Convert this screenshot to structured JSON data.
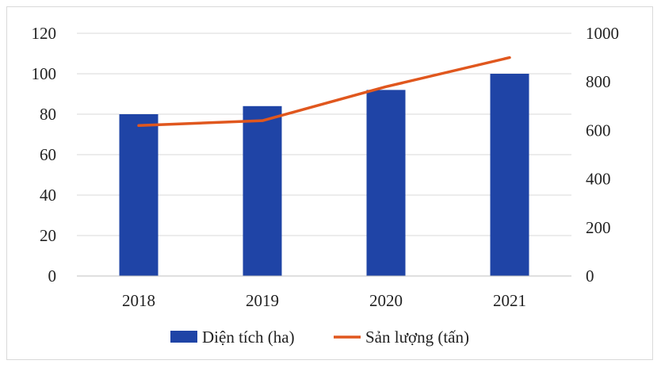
{
  "chart_data": {
    "type": "bar",
    "categories": [
      "2018",
      "2019",
      "2020",
      "2021"
    ],
    "series": [
      {
        "name": "Diện tích (ha)",
        "type": "bar",
        "axis": "left",
        "values": [
          80,
          84,
          92,
          100
        ],
        "color": "#1f44a6"
      },
      {
        "name": "Sản lượng (tấn)",
        "type": "line",
        "axis": "right",
        "values": [
          620,
          640,
          780,
          900
        ],
        "color": "#e0571e"
      }
    ],
    "y_left": {
      "range": [
        0,
        120
      ],
      "ticks": [
        "0",
        "20",
        "40",
        "60",
        "80",
        "100",
        "120"
      ]
    },
    "y_right": {
      "range": [
        0,
        1000
      ],
      "ticks": [
        "0",
        "200",
        "400",
        "600",
        "800",
        "1000"
      ]
    },
    "title": "",
    "grid": true,
    "legend_position": "bottom"
  }
}
